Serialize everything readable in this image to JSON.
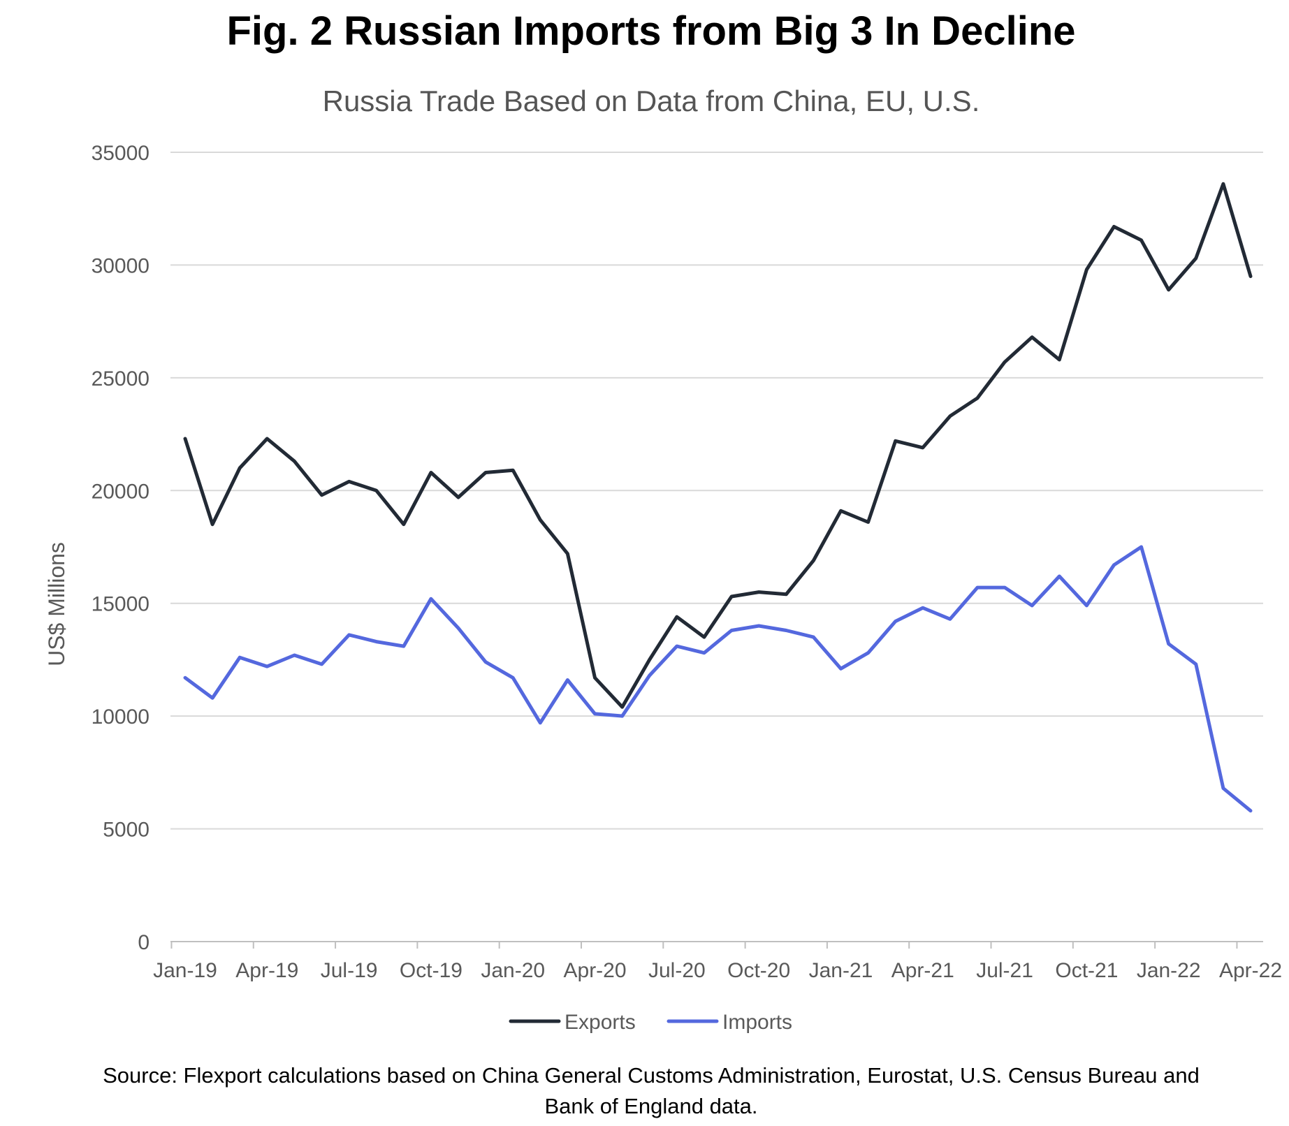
{
  "chart_data": {
    "type": "line",
    "title": "Fig. 2 Russian Imports from Big 3 In Decline",
    "subtitle": "Russia Trade Based on Data from China, EU, U.S.",
    "ylabel": "US$ Millions",
    "xlabel": "",
    "ylim": [
      0,
      35000
    ],
    "yticks": [
      0,
      5000,
      10000,
      15000,
      20000,
      25000,
      30000,
      35000
    ],
    "ytick_labels": [
      "0",
      "5000",
      "10000",
      "15000",
      "20000",
      "25000",
      "30000",
      "35000"
    ],
    "x": [
      "Jan-19",
      "Feb-19",
      "Mar-19",
      "Apr-19",
      "May-19",
      "Jun-19",
      "Jul-19",
      "Aug-19",
      "Sep-19",
      "Oct-19",
      "Nov-19",
      "Dec-19",
      "Jan-20",
      "Feb-20",
      "Mar-20",
      "Apr-20",
      "May-20",
      "Jun-20",
      "Jul-20",
      "Aug-20",
      "Sep-20",
      "Oct-20",
      "Nov-20",
      "Dec-20",
      "Jan-21",
      "Feb-21",
      "Mar-21",
      "Apr-21",
      "May-21",
      "Jun-21",
      "Jul-21",
      "Aug-21",
      "Sep-21",
      "Oct-21",
      "Nov-21",
      "Dec-21",
      "Jan-22",
      "Feb-22",
      "Mar-22",
      "Apr-22"
    ],
    "xtick_labels": [
      "Jan-19",
      "Apr-19",
      "Jul-19",
      "Oct-19",
      "Jan-20",
      "Apr-20",
      "Jul-20",
      "Oct-20",
      "Jan-21",
      "Apr-21",
      "Jul-21",
      "Oct-21",
      "Jan-22",
      "Apr-22"
    ],
    "series": [
      {
        "name": "Exports",
        "color": "#222a35",
        "values": [
          22300,
          18500,
          21000,
          22300,
          21300,
          19800,
          20400,
          20000,
          18500,
          20800,
          19700,
          20800,
          20900,
          18700,
          17200,
          11700,
          10400,
          12500,
          14400,
          13500,
          15300,
          15500,
          15400,
          16900,
          19100,
          18600,
          22200,
          21900,
          23300,
          24100,
          25700,
          26800,
          25800,
          29800,
          31700,
          31100,
          28900,
          30300,
          33600,
          29500
        ]
      },
      {
        "name": "Imports",
        "color": "#5468de",
        "values": [
          11700,
          10800,
          12600,
          12200,
          12700,
          12300,
          13600,
          13300,
          13100,
          15200,
          13900,
          12400,
          11700,
          9700,
          11600,
          10100,
          10000,
          11800,
          13100,
          12800,
          13800,
          14000,
          13800,
          13500,
          12100,
          12800,
          14200,
          14800,
          14300,
          15700,
          15700,
          14900,
          16200,
          14900,
          16700,
          17500,
          13200,
          12300,
          6800,
          5800
        ]
      }
    ],
    "grid": true,
    "legend": "bottom-center",
    "source": [
      "Source: Flexport calculations based on China General Customs Administration, Eurostat, U.S. Census Bureau and",
      "Bank of England data."
    ]
  }
}
